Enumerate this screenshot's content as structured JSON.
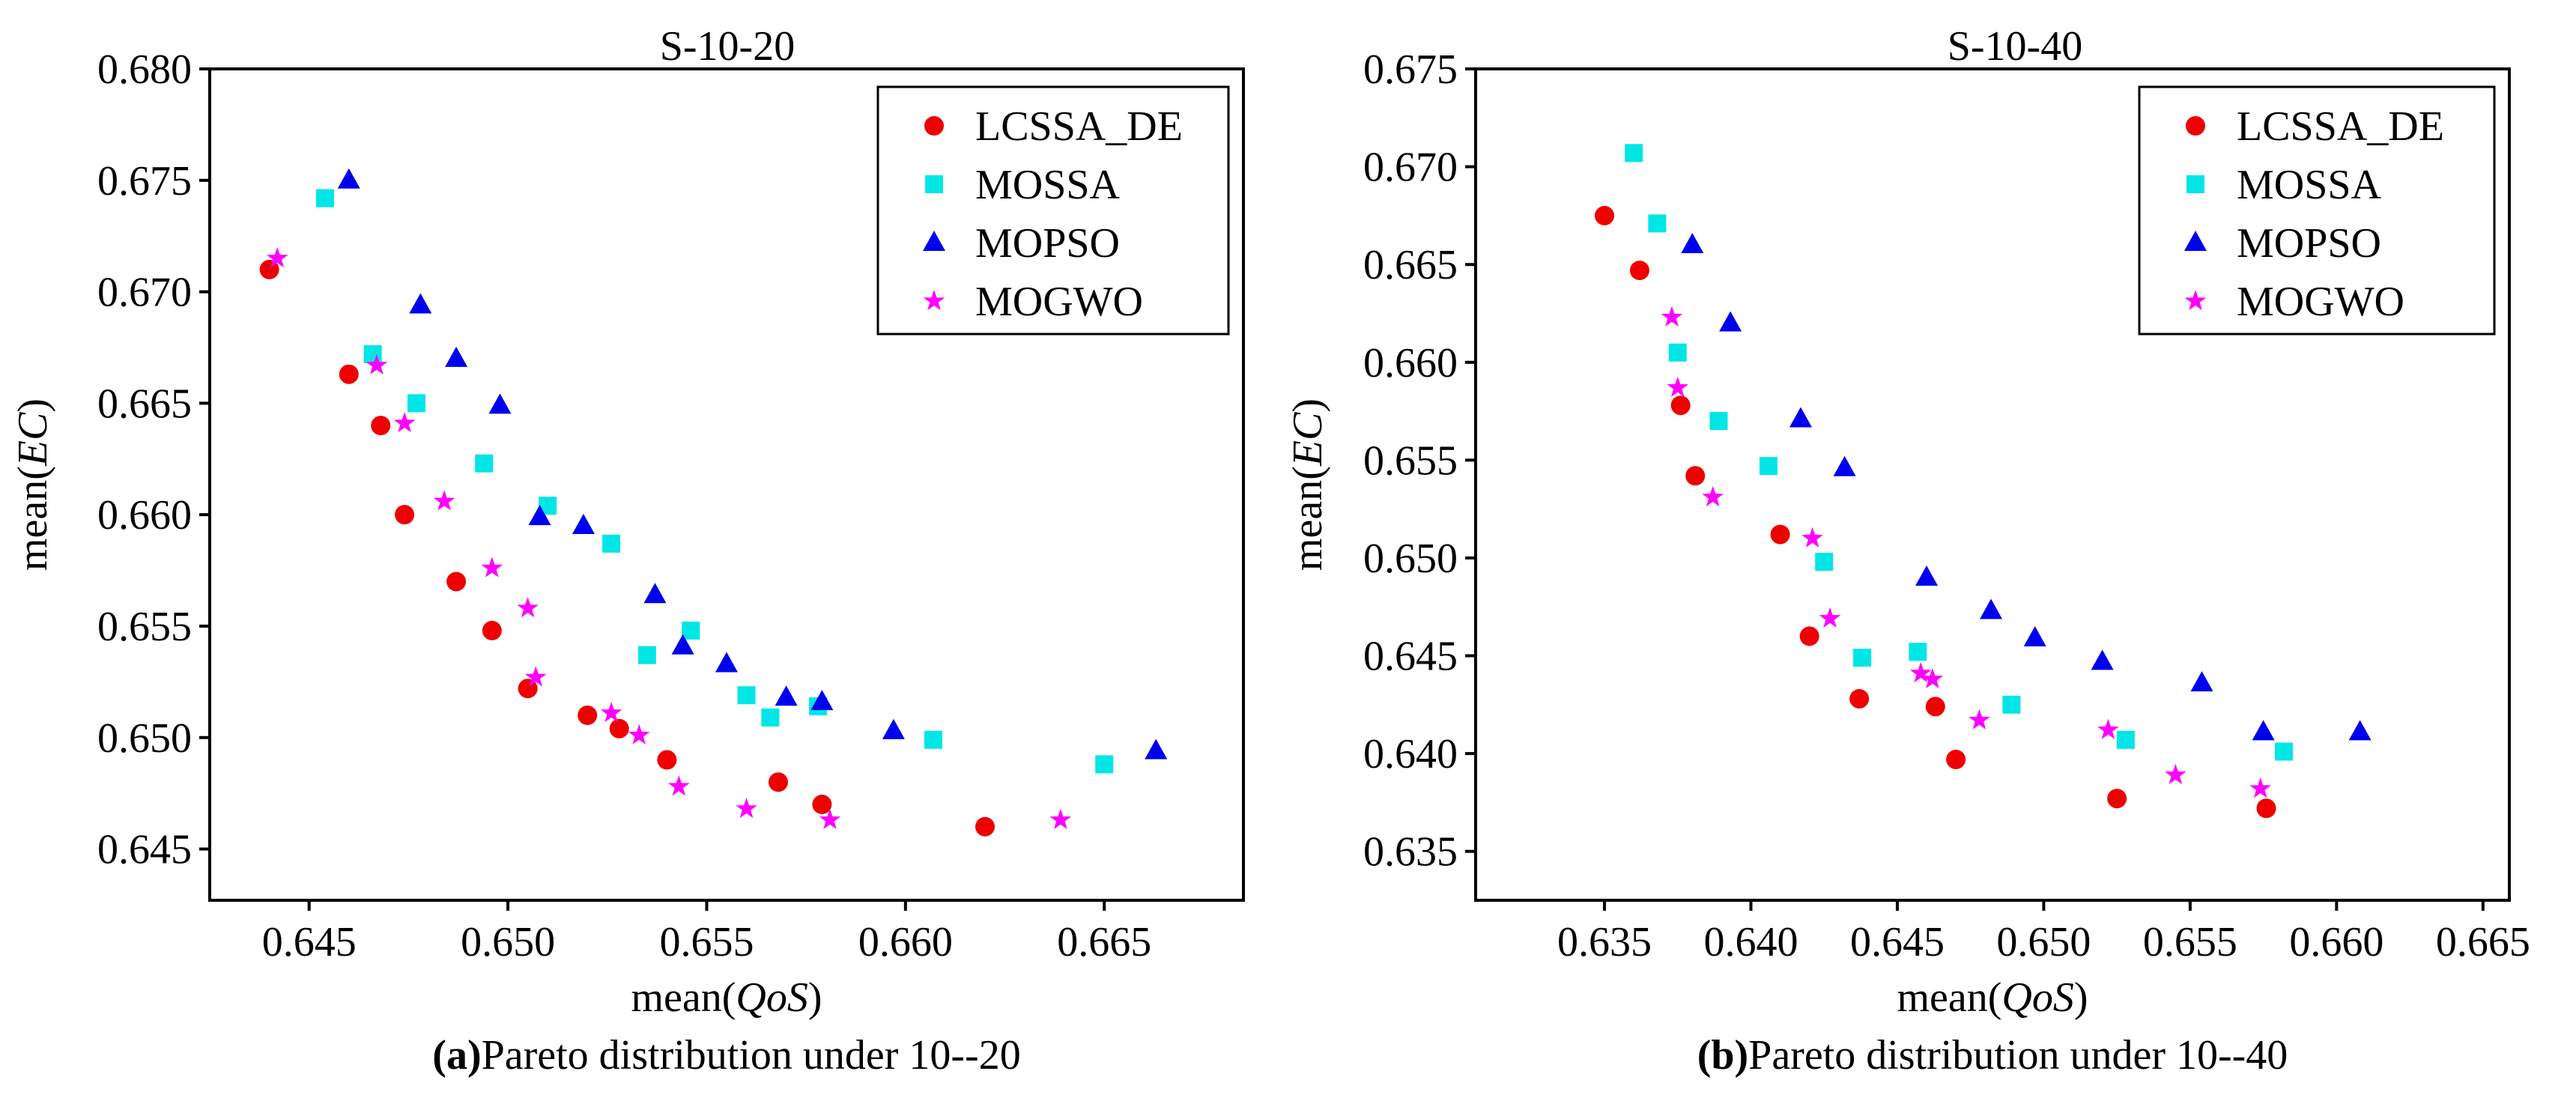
{
  "figure": {
    "panels": [
      {
        "caption_letter": "(a)",
        "caption_text": "Pareto distribution under 10--20"
      },
      {
        "caption_letter": "(b)",
        "caption_text": "Pareto distribution under 10--40"
      }
    ]
  },
  "colors": {
    "LCSSA_DE": "#ee0000",
    "MOSSA": "#00e6e6",
    "MOPSO": "#0000ee",
    "MOGWO": "#ff00ff"
  },
  "chart_data": [
    {
      "type": "scatter",
      "title": "S-10-20",
      "xlabel_prefix": "mean(",
      "xlabel_italic": "QoS",
      "xlabel_suffix": ")",
      "ylabel_prefix": "mean(",
      "ylabel_italic": "EC",
      "ylabel_suffix": ")",
      "xlim": [
        0.6425,
        0.6685
      ],
      "ylim": [
        0.6427,
        0.68
      ],
      "xticks": [
        0.645,
        0.65,
        0.655,
        0.66,
        0.665
      ],
      "xtick_labels": [
        "0.645",
        "0.650",
        "0.655",
        "0.660",
        "0.665"
      ],
      "yticks": [
        0.645,
        0.65,
        0.655,
        0.66,
        0.665,
        0.67,
        0.675,
        0.68
      ],
      "ytick_labels": [
        "0.645",
        "0.650",
        "0.655",
        "0.660",
        "0.665",
        "0.670",
        "0.675",
        "0.680"
      ],
      "legend_position": "top-right",
      "series": [
        {
          "name": "LCSSA_DE",
          "marker": "circle",
          "points": [
            [
              0.644,
              0.671
            ],
            [
              0.646,
              0.6663
            ],
            [
              0.6468,
              0.664
            ],
            [
              0.6474,
              0.66
            ],
            [
              0.6487,
              0.657
            ],
            [
              0.6496,
              0.6548
            ],
            [
              0.6505,
              0.6522
            ],
            [
              0.652,
              0.651
            ],
            [
              0.6528,
              0.6504
            ],
            [
              0.654,
              0.649
            ],
            [
              0.6568,
              0.648
            ],
            [
              0.6579,
              0.647
            ],
            [
              0.662,
              0.646
            ]
          ]
        },
        {
          "name": "MOSSA",
          "marker": "square",
          "points": [
            [
              0.6454,
              0.6742
            ],
            [
              0.6466,
              0.6672
            ],
            [
              0.6477,
              0.665
            ],
            [
              0.6494,
              0.6623
            ],
            [
              0.651,
              0.6604
            ],
            [
              0.6526,
              0.6587
            ],
            [
              0.6535,
              0.6537
            ],
            [
              0.6546,
              0.6548
            ],
            [
              0.656,
              0.6519
            ],
            [
              0.6566,
              0.6509
            ],
            [
              0.6578,
              0.6514
            ],
            [
              0.6607,
              0.6499
            ],
            [
              0.665,
              0.6488
            ]
          ]
        },
        {
          "name": "MOPSO",
          "marker": "triangle",
          "points": [
            [
              0.646,
              0.675
            ],
            [
              0.6478,
              0.6694
            ],
            [
              0.6487,
              0.667
            ],
            [
              0.6498,
              0.6649
            ],
            [
              0.6508,
              0.6599
            ],
            [
              0.6519,
              0.6595
            ],
            [
              0.6537,
              0.6564
            ],
            [
              0.6544,
              0.6541
            ],
            [
              0.6555,
              0.6533
            ],
            [
              0.657,
              0.6518
            ],
            [
              0.6579,
              0.6516
            ],
            [
              0.6597,
              0.6503
            ],
            [
              0.6663,
              0.6494
            ]
          ]
        },
        {
          "name": "MOGWO",
          "marker": "star",
          "points": [
            [
              0.6442,
              0.6715
            ],
            [
              0.6467,
              0.6667
            ],
            [
              0.6474,
              0.6641
            ],
            [
              0.6484,
              0.6606
            ],
            [
              0.6496,
              0.6576
            ],
            [
              0.6505,
              0.6558
            ],
            [
              0.6507,
              0.6527
            ],
            [
              0.6526,
              0.6511
            ],
            [
              0.6533,
              0.6501
            ],
            [
              0.6543,
              0.6478
            ],
            [
              0.656,
              0.6468
            ],
            [
              0.6581,
              0.6463
            ],
            [
              0.6639,
              0.6463
            ]
          ]
        }
      ]
    },
    {
      "type": "scatter",
      "title": "S-10-40",
      "xlabel_prefix": "mean(",
      "xlabel_italic": "QoS",
      "xlabel_suffix": ")",
      "ylabel_prefix": "mean(",
      "ylabel_italic": "EC",
      "ylabel_suffix": ")",
      "xlim": [
        0.6306,
        0.6659
      ],
      "ylim": [
        0.6325,
        0.675
      ],
      "xticks": [
        0.635,
        0.64,
        0.645,
        0.65,
        0.655,
        0.66,
        0.665
      ],
      "xtick_labels": [
        "0.635",
        "0.640",
        "0.645",
        "0.650",
        "0.655",
        "0.660",
        "0.665"
      ],
      "yticks": [
        0.635,
        0.64,
        0.645,
        0.65,
        0.655,
        0.66,
        0.665,
        0.67,
        0.675
      ],
      "ytick_labels": [
        "0.635",
        "0.640",
        "0.645",
        "0.650",
        "0.655",
        "0.660",
        "0.665",
        "0.670",
        "0.675"
      ],
      "legend_position": "top-right",
      "series": [
        {
          "name": "LCSSA_DE",
          "marker": "circle",
          "points": [
            [
              0.635,
              0.6675
            ],
            [
              0.6362,
              0.6647
            ],
            [
              0.6376,
              0.6578
            ],
            [
              0.6381,
              0.6542
            ],
            [
              0.641,
              0.6512
            ],
            [
              0.642,
              0.646
            ],
            [
              0.6437,
              0.6428
            ],
            [
              0.6463,
              0.6424
            ],
            [
              0.647,
              0.6397
            ],
            [
              0.6525,
              0.6377
            ],
            [
              0.6576,
              0.6372
            ]
          ]
        },
        {
          "name": "MOSSA",
          "marker": "square",
          "points": [
            [
              0.636,
              0.6707
            ],
            [
              0.6368,
              0.6671
            ],
            [
              0.6375,
              0.6605
            ],
            [
              0.6389,
              0.657
            ],
            [
              0.6406,
              0.6547
            ],
            [
              0.6425,
              0.6498
            ],
            [
              0.6438,
              0.6449
            ],
            [
              0.6457,
              0.6452
            ],
            [
              0.6489,
              0.6425
            ],
            [
              0.6528,
              0.6407
            ],
            [
              0.6582,
              0.6401
            ]
          ]
        },
        {
          "name": "MOPSO",
          "marker": "triangle",
          "points": [
            [
              0.638,
              0.666
            ],
            [
              0.6393,
              0.662
            ],
            [
              0.6417,
              0.6571
            ],
            [
              0.6432,
              0.6546
            ],
            [
              0.646,
              0.649
            ],
            [
              0.6482,
              0.6473
            ],
            [
              0.6497,
              0.6459
            ],
            [
              0.652,
              0.6447
            ],
            [
              0.6554,
              0.6436
            ],
            [
              0.6575,
              0.6411
            ],
            [
              0.6608,
              0.6411
            ]
          ]
        },
        {
          "name": "MOGWO",
          "marker": "star",
          "points": [
            [
              0.6373,
              0.6623
            ],
            [
              0.6375,
              0.6587
            ],
            [
              0.6387,
              0.6531
            ],
            [
              0.6421,
              0.651
            ],
            [
              0.6427,
              0.6469
            ],
            [
              0.6458,
              0.6441
            ],
            [
              0.6462,
              0.6438
            ],
            [
              0.6478,
              0.6417
            ],
            [
              0.6522,
              0.6412
            ],
            [
              0.6545,
              0.6389
            ],
            [
              0.6574,
              0.6382
            ]
          ]
        }
      ]
    }
  ]
}
